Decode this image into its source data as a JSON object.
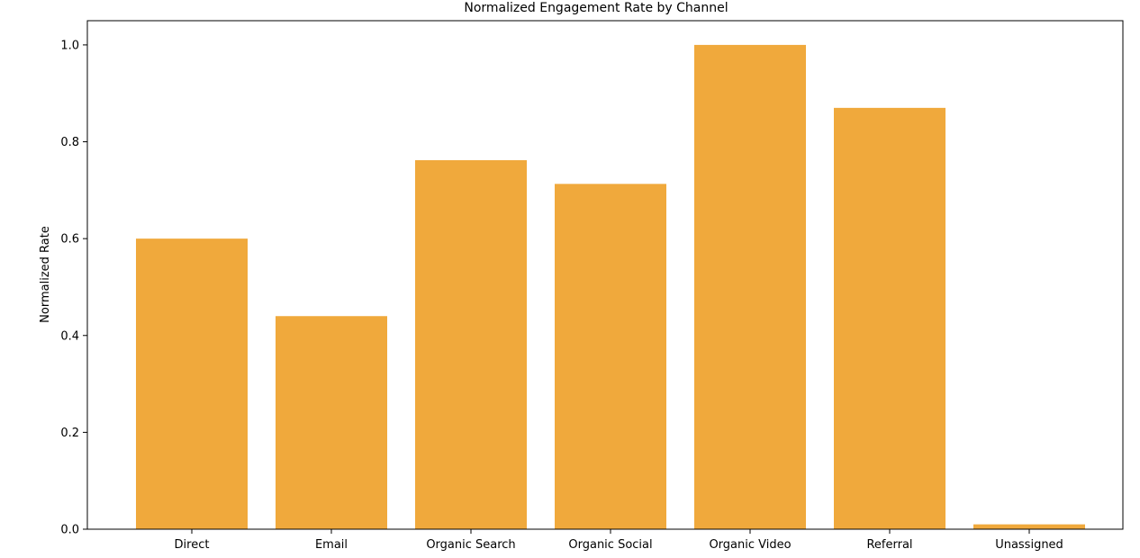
{
  "chart_data": {
    "type": "bar",
    "title": "Normalized Engagement Rate by Channel",
    "xlabel": "",
    "ylabel": "Normalized Rate",
    "categories": [
      "Direct",
      "Email",
      "Organic Search",
      "Organic Social",
      "Organic Video",
      "Referral",
      "Unassigned"
    ],
    "values": [
      0.6,
      0.44,
      0.762,
      0.713,
      1.0,
      0.87,
      0.01
    ],
    "ylim": [
      0,
      1.05
    ],
    "yticks": [
      0.0,
      0.2,
      0.4,
      0.6,
      0.8,
      1.0
    ],
    "ytick_labels": [
      "0.0",
      "0.2",
      "0.4",
      "0.6",
      "0.8",
      "1.0"
    ],
    "bar_color": "#f0a93c",
    "grid": false,
    "legend": "none"
  }
}
